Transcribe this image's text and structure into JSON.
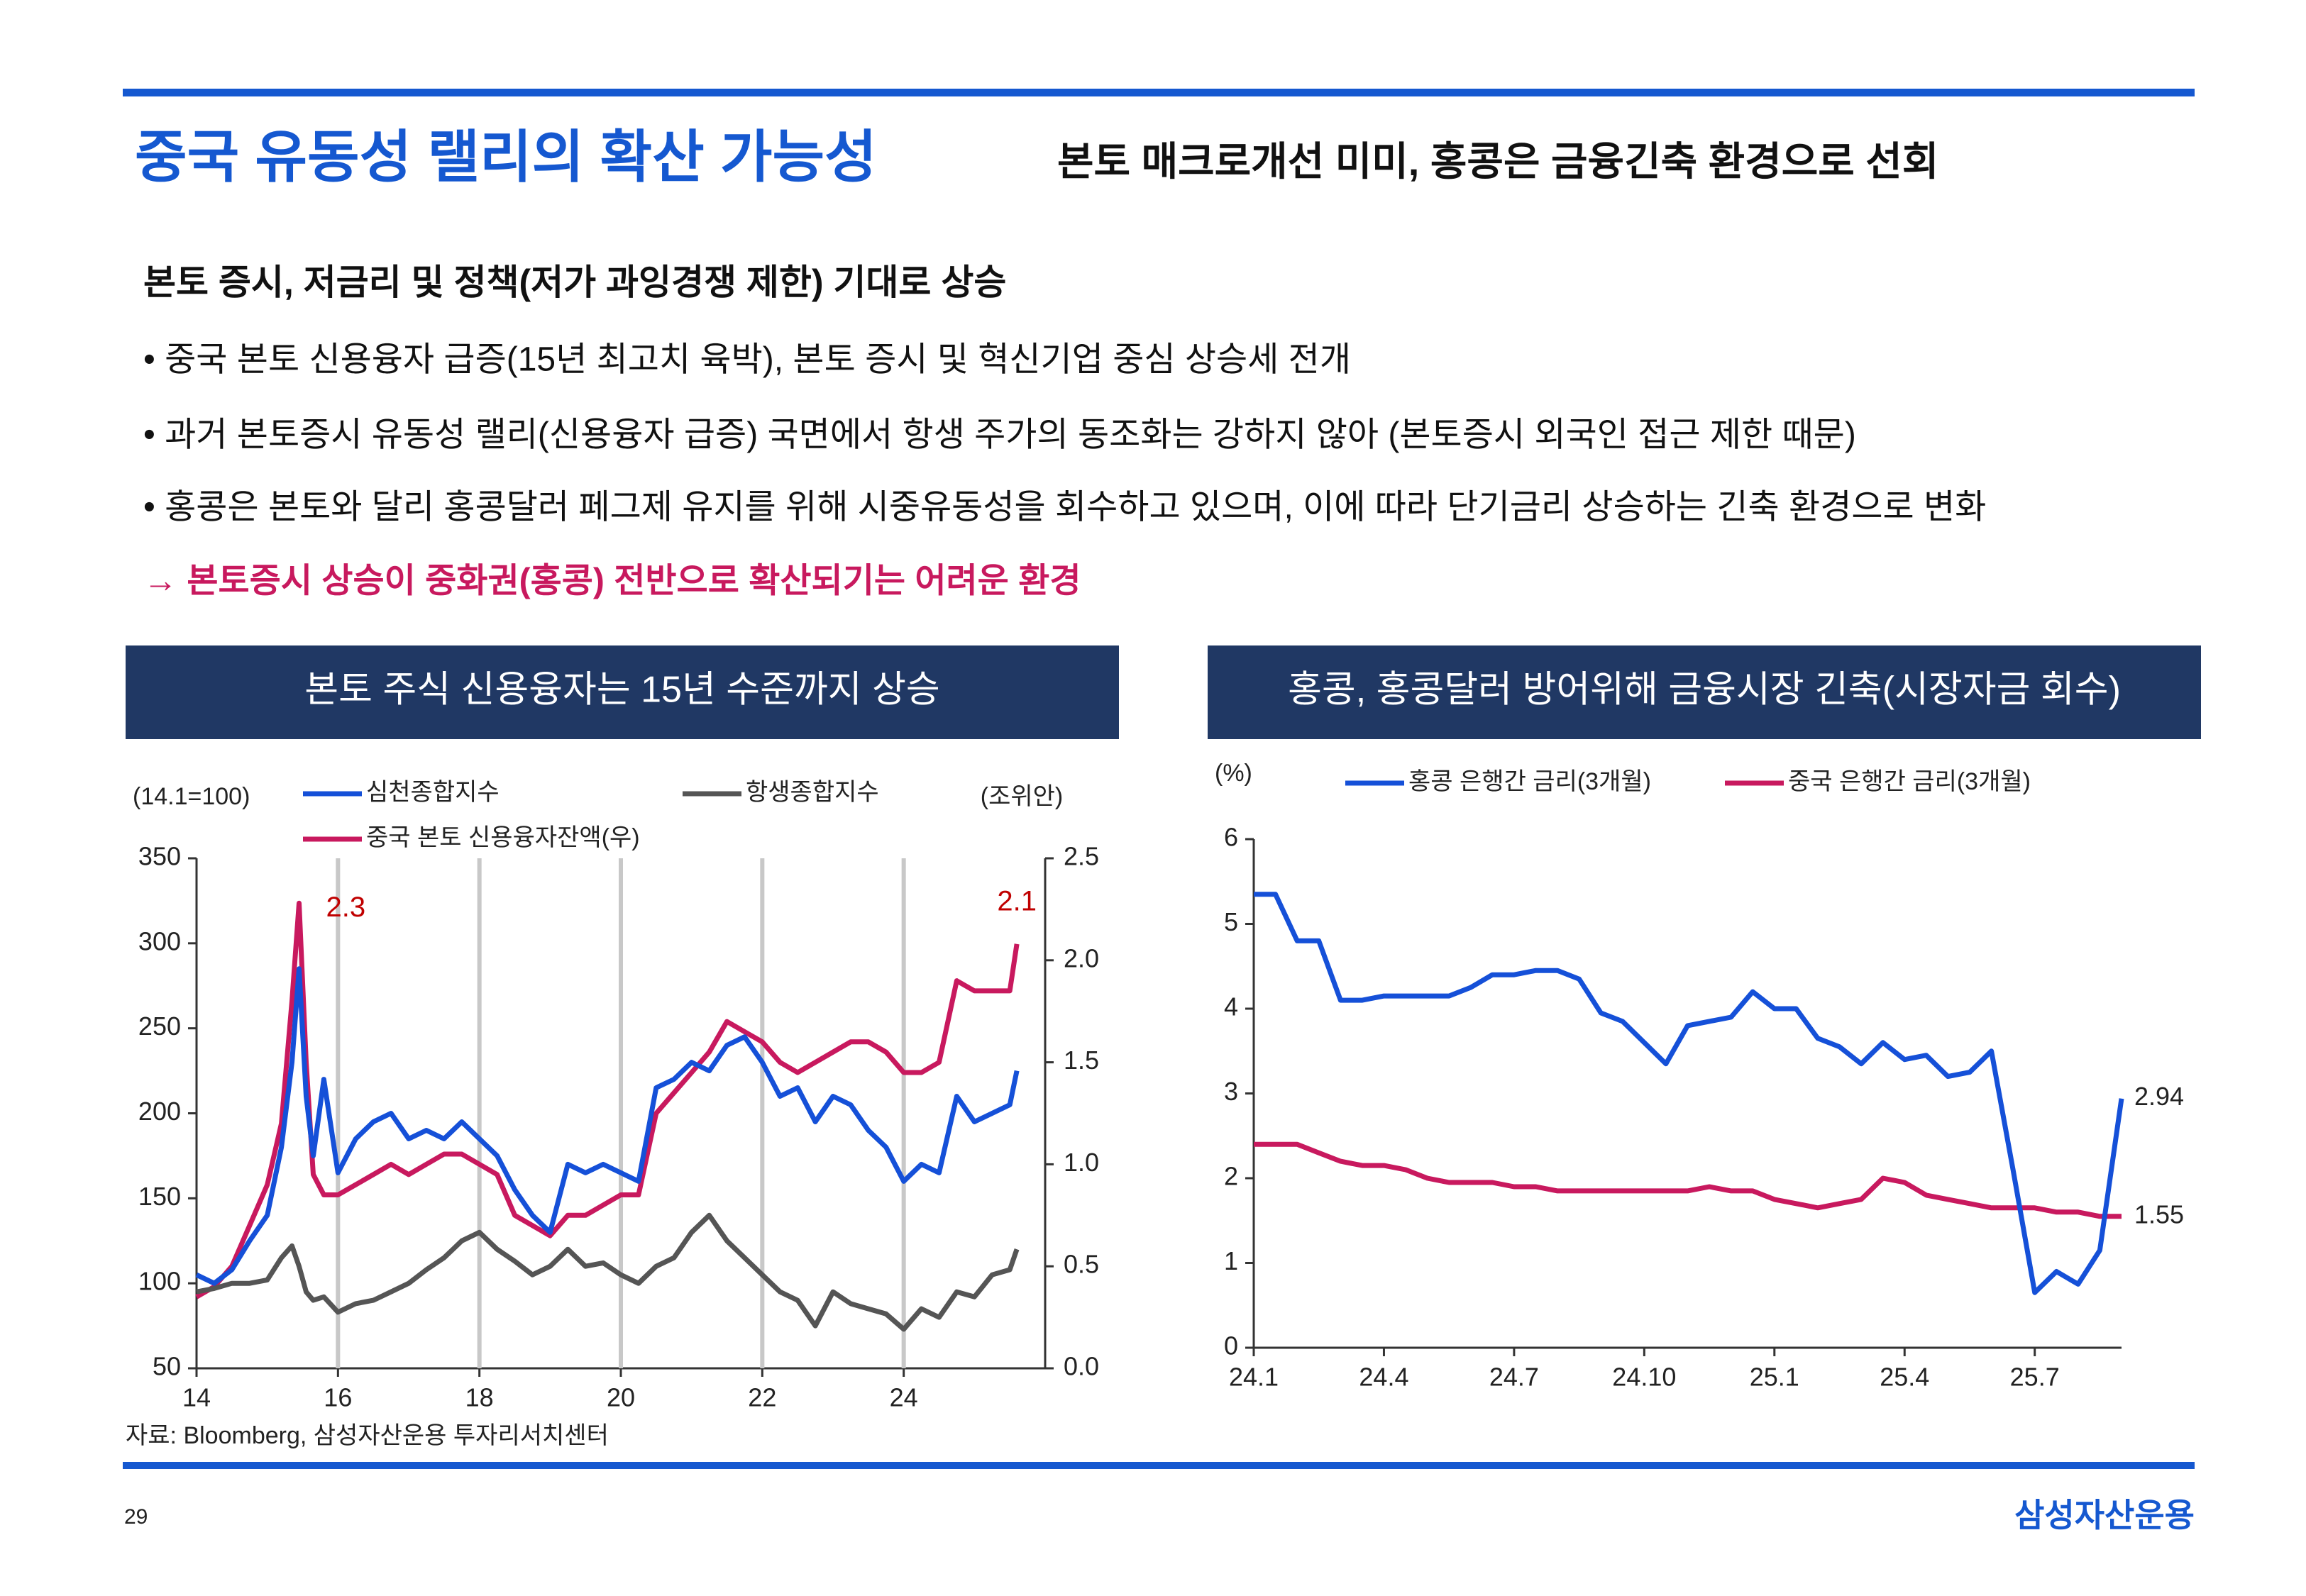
{
  "header": {
    "title": "중국 유동성 랠리의 확산 가능성",
    "subtitle": "본토 매크로개선 미미, 홍콩은 금융긴축 환경으로 선회"
  },
  "body": {
    "heading": "본토 증시, 저금리 및 정책(저가 과잉경쟁 제한) 기대로 상승",
    "bullets": [
      "• 중국 본토 신용융자 급증(15년 최고치 육박), 본토 증시 및 혁신기업 중심 상승세 전개",
      "• 과거 본토증시 유동성 랠리(신용융자 급증) 국면에서 항생 주가의 동조화는 강하지 않아 (본토증시 외국인 접근 제한 때문)",
      "• 홍콩은 본토와 달리 홍콩달러 페그제 유지를 위해 시중유동성을 회수하고 있으며, 이에 따라 단기금리 상승하는 긴축 환경으로 변화"
    ],
    "conclusion": "→ 본토증시 상승이 중화권(홍콩) 전반으로 확산되기는 어려운 환경"
  },
  "chart_data": [
    {
      "type": "line",
      "title": "본토 주식 신용융자는 15년 수준까지 상승",
      "y_label": "(14.1=100)",
      "y2_label": "(조위안)",
      "source": "자료: Bloomberg, 삼성자산운용 투자리서치센터",
      "x": [
        14.0,
        14.25,
        14.5,
        14.75,
        15.0,
        15.2,
        15.35,
        15.45,
        15.55,
        15.65,
        15.8,
        16.0,
        16.25,
        16.5,
        16.75,
        17.0,
        17.25,
        17.5,
        17.75,
        18.0,
        18.25,
        18.5,
        18.75,
        19.0,
        19.25,
        19.5,
        19.75,
        20.0,
        20.25,
        20.5,
        20.75,
        21.0,
        21.25,
        21.5,
        21.75,
        22.0,
        22.25,
        22.5,
        22.75,
        23.0,
        23.25,
        23.5,
        23.75,
        24.0,
        24.25,
        24.5,
        24.75,
        25.0,
        25.25,
        25.5,
        25.6
      ],
      "xlim": [
        14,
        26
      ],
      "xticks": [
        14,
        16,
        18,
        20,
        22,
        24
      ],
      "ylim": [
        50,
        350
      ],
      "yticks": [
        50,
        100,
        150,
        200,
        250,
        300,
        350
      ],
      "y2lim": [
        0,
        2.5
      ],
      "y2ticks": [
        {
          "value": 0,
          "label": "0.0"
        },
        0.5,
        {
          "value": 1,
          "label": "1.0"
        },
        1.5,
        {
          "value": 2,
          "label": "2.0"
        },
        2.5
      ],
      "grid_x": true,
      "series": [
        {
          "name": "심천종합지수",
          "color": "#1550d8",
          "values": [
            105,
            100,
            108,
            125,
            140,
            180,
            230,
            285,
            210,
            175,
            220,
            165,
            185,
            195,
            200,
            185,
            190,
            185,
            195,
            185,
            175,
            155,
            140,
            130,
            170,
            165,
            170,
            165,
            160,
            215,
            220,
            230,
            225,
            240,
            245,
            230,
            210,
            215,
            195,
            210,
            205,
            190,
            180,
            160,
            170,
            165,
            210,
            195,
            200,
            205,
            225
          ]
        },
        {
          "name": "항생종합지수",
          "color": "#555555",
          "values": [
            95,
            97,
            100,
            100,
            102,
            115,
            122,
            110,
            95,
            90,
            92,
            83,
            88,
            90,
            95,
            100,
            108,
            115,
            125,
            130,
            120,
            113,
            105,
            110,
            120,
            110,
            112,
            105,
            100,
            110,
            115,
            130,
            140,
            125,
            115,
            105,
            95,
            90,
            75,
            95,
            88,
            85,
            82,
            73,
            85,
            80,
            95,
            92,
            105,
            108,
            120
          ]
        },
        {
          "name": "중국 본토 신용융자잔액(우)",
          "color": "#c8195e",
          "axis": "y2",
          "peak_label": "2.3",
          "end_label": "2.1",
          "values": [
            0.35,
            0.4,
            0.5,
            0.7,
            0.9,
            1.2,
            1.8,
            2.28,
            1.5,
            0.95,
            0.85,
            0.85,
            0.9,
            0.95,
            1.0,
            0.95,
            1.0,
            1.05,
            1.05,
            1.0,
            0.95,
            0.75,
            0.7,
            0.65,
            0.75,
            0.75,
            0.8,
            0.85,
            0.85,
            1.25,
            1.35,
            1.45,
            1.55,
            1.7,
            1.65,
            1.6,
            1.5,
            1.45,
            1.5,
            1.55,
            1.6,
            1.6,
            1.55,
            1.45,
            1.45,
            1.5,
            1.9,
            1.85,
            1.85,
            1.85,
            2.08
          ]
        }
      ]
    },
    {
      "type": "line",
      "title": "홍콩, 홍콩달러 방어위해 금융시장 긴축(시장자금 회수)",
      "y_label": "(%)",
      "categories": [
        "24.1",
        null,
        null,
        null,
        null,
        null,
        "24.4",
        null,
        null,
        null,
        null,
        null,
        "24.7",
        null,
        null,
        null,
        null,
        null,
        "24.10",
        null,
        null,
        null,
        null,
        null,
        "25.1",
        null,
        null,
        null,
        null,
        null,
        "25.4",
        null,
        null,
        null,
        null,
        null,
        "25.7",
        null,
        null,
        null,
        null
      ],
      "ylim": [
        0,
        6
      ],
      "yticks": [
        0,
        1,
        2,
        3,
        4,
        5,
        6
      ],
      "series": [
        {
          "name": "홍콩 은행간 금리(3개월)",
          "color": "#1550d8",
          "end_label": "2.94",
          "values": [
            5.35,
            5.35,
            4.8,
            4.8,
            4.1,
            4.1,
            4.15,
            4.15,
            4.15,
            4.15,
            4.25,
            4.4,
            4.4,
            4.45,
            4.45,
            4.35,
            3.95,
            3.85,
            3.6,
            3.35,
            3.8,
            3.85,
            3.9,
            4.2,
            4.0,
            4.0,
            3.65,
            3.55,
            3.35,
            3.6,
            3.4,
            3.45,
            3.2,
            3.25,
            3.5,
            2.1,
            0.65,
            0.9,
            0.75,
            1.15,
            2.94
          ]
        },
        {
          "name": "중국 은행간 금리(3개월)",
          "color": "#c8195e",
          "end_label": "1.55",
          "values": [
            2.4,
            2.4,
            2.4,
            2.3,
            2.2,
            2.15,
            2.15,
            2.1,
            2.0,
            1.95,
            1.95,
            1.95,
            1.9,
            1.9,
            1.85,
            1.85,
            1.85,
            1.85,
            1.85,
            1.85,
            1.85,
            1.9,
            1.85,
            1.85,
            1.75,
            1.7,
            1.65,
            1.7,
            1.75,
            2.0,
            1.95,
            1.8,
            1.75,
            1.7,
            1.65,
            1.65,
            1.65,
            1.6,
            1.6,
            1.55,
            1.55
          ]
        }
      ]
    }
  ],
  "footer": {
    "page_number": "29",
    "logo": "삼성자산운용"
  }
}
